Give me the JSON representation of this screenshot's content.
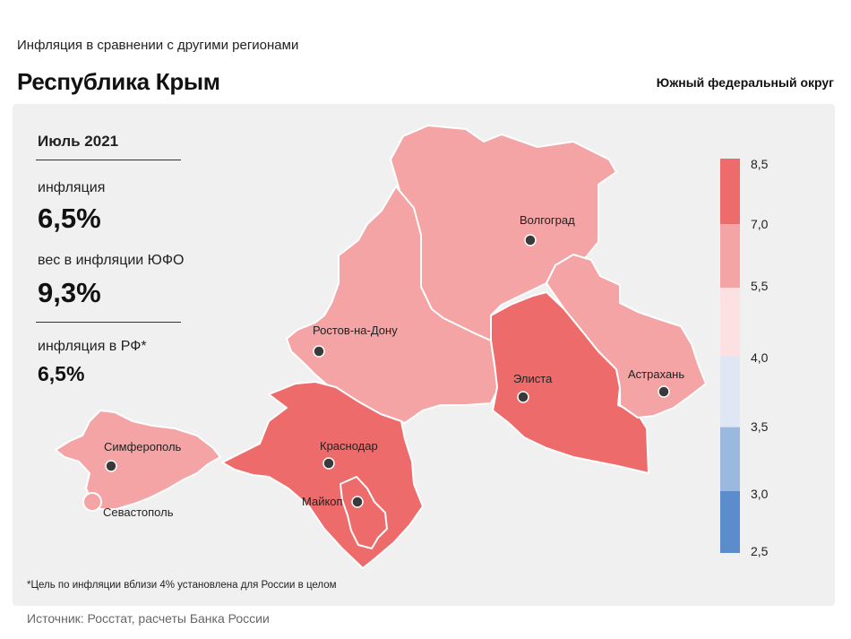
{
  "header": {
    "subtitle": "Инфляция в сравнении с другими регионами",
    "title": "Республика Крым",
    "district": "Южный федеральный округ"
  },
  "stats": {
    "period": "Июль 2021",
    "inflation_label": "инфляция",
    "inflation_value": "6,5%",
    "weight_label": "вес в инфляции ЮФО",
    "weight_value": "9,3%",
    "rf_label": "инфляция в РФ*",
    "rf_value": "6,5%"
  },
  "map": {
    "regions": [
      {
        "name": "Волгоградская область",
        "color": "#f4a4a4"
      },
      {
        "name": "Ростовская область",
        "color": "#f4a4a4"
      },
      {
        "name": "Республика Калмыкия",
        "color": "#ee6b6b"
      },
      {
        "name": "Астраханская область",
        "color": "#f4a4a4"
      },
      {
        "name": "Краснодарский край",
        "color": "#ee6b6b"
      },
      {
        "name": "Республика Адыгея",
        "color": "#ee6b6b"
      },
      {
        "name": "Республика Крым",
        "color": "#f4a4a4"
      },
      {
        "name": "Севастополь",
        "color": "#f4a4a4"
      }
    ],
    "cities": {
      "volgograd": "Волгоград",
      "rostov": "Ростов-на-Дону",
      "elista": "Элиста",
      "astrakhan": "Астрахань",
      "krasnodar": "Краснодар",
      "maykop": "Майкоп",
      "simferopol": "Симферополь",
      "sevastopol": "Севастополь"
    }
  },
  "legend": {
    "ticks": [
      "8,5",
      "7,0",
      "5,5",
      "4,0",
      "3,5",
      "3,0",
      "2,5"
    ],
    "colors": [
      "#ee6b6b",
      "#f4a4a4",
      "#fce0e2",
      "#dfe6f4",
      "#c8d6ec",
      "#9bb8de",
      "#5b8ccb"
    ]
  },
  "footnote": "*Цель по инфляции вблизи 4% установлена для России в целом",
  "source": "Источник: Росстат, расчеты Банка России"
}
